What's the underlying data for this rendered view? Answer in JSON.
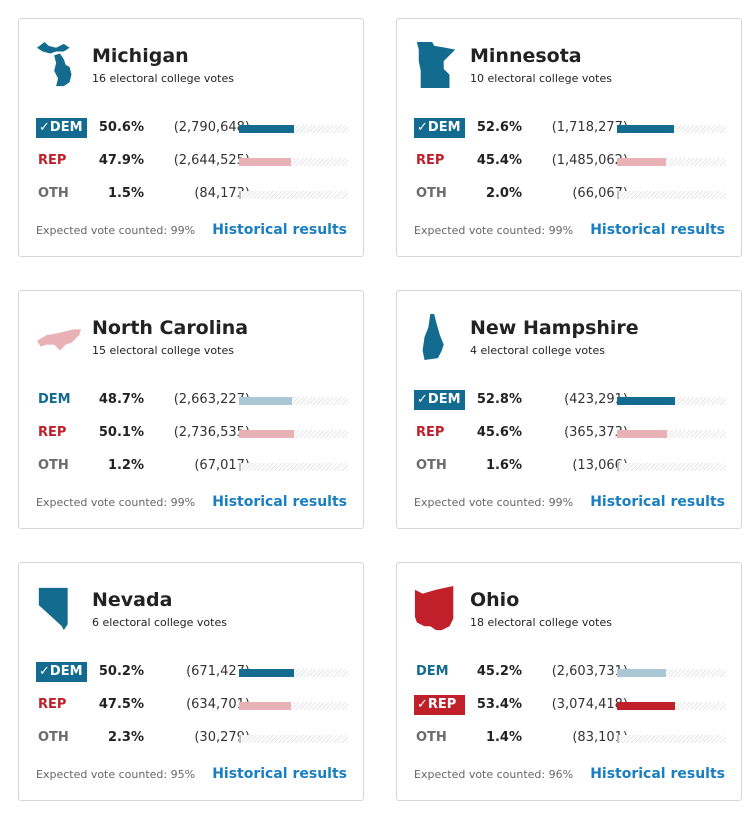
{
  "colors": {
    "dem": "#136b8f",
    "dem_light": "#a9c7d4",
    "rep": "#c0202a",
    "rep_light": "#e8b1b5",
    "oth": "#6b6b6b",
    "oth_bar": "#bbbbbb"
  },
  "cards": [
    {
      "state": "Michigan",
      "votes": "16 electoral college votes",
      "winner": "dem",
      "expected": "Expected vote counted: 99%",
      "link": "Historical results",
      "rows": [
        {
          "party": "DEM",
          "pct": "50.6%",
          "count": "(2,790,648)",
          "value": 50.6
        },
        {
          "party": "REP",
          "pct": "47.9%",
          "count": "(2,644,525)",
          "value": 47.9
        },
        {
          "party": "OTH",
          "pct": "1.5%",
          "count": "(84,173)",
          "value": 1.5
        }
      ]
    },
    {
      "state": "Minnesota",
      "votes": "10 electoral college votes",
      "winner": "dem",
      "expected": "Expected vote counted: 99%",
      "link": "Historical results",
      "rows": [
        {
          "party": "DEM",
          "pct": "52.6%",
          "count": "(1,718,277)",
          "value": 52.6
        },
        {
          "party": "REP",
          "pct": "45.4%",
          "count": "(1,485,062)",
          "value": 45.4
        },
        {
          "party": "OTH",
          "pct": "2.0%",
          "count": "(66,067)",
          "value": 2.0
        }
      ]
    },
    {
      "state": "North Carolina",
      "votes": "15 electoral college votes",
      "winner": "none",
      "expected": "Expected vote counted: 99%",
      "link": "Historical results",
      "rows": [
        {
          "party": "DEM",
          "pct": "48.7%",
          "count": "(2,663,227)",
          "value": 48.7
        },
        {
          "party": "REP",
          "pct": "50.1%",
          "count": "(2,736,535)",
          "value": 50.1
        },
        {
          "party": "OTH",
          "pct": "1.2%",
          "count": "(67,017)",
          "value": 1.2
        }
      ]
    },
    {
      "state": "New Hampshire",
      "votes": "4 electoral college votes",
      "winner": "dem",
      "expected": "Expected vote counted: 99%",
      "link": "Historical results",
      "rows": [
        {
          "party": "DEM",
          "pct": "52.8%",
          "count": "(423,291)",
          "value": 52.8
        },
        {
          "party": "REP",
          "pct": "45.6%",
          "count": "(365,373)",
          "value": 45.6
        },
        {
          "party": "OTH",
          "pct": "1.6%",
          "count": "(13,066)",
          "value": 1.6
        }
      ]
    },
    {
      "state": "Nevada",
      "votes": "6 electoral college votes",
      "winner": "dem",
      "expected": "Expected vote counted: 95%",
      "link": "Historical results",
      "rows": [
        {
          "party": "DEM",
          "pct": "50.2%",
          "count": "(671,427)",
          "value": 50.2
        },
        {
          "party": "REP",
          "pct": "47.5%",
          "count": "(634,701)",
          "value": 47.5
        },
        {
          "party": "OTH",
          "pct": "2.3%",
          "count": "(30,279)",
          "value": 2.3
        }
      ]
    },
    {
      "state": "Ohio",
      "votes": "18 electoral college votes",
      "winner": "rep",
      "expected": "Expected vote counted: 96%",
      "link": "Historical results",
      "rows": [
        {
          "party": "DEM",
          "pct": "45.2%",
          "count": "(2,603,731)",
          "value": 45.2
        },
        {
          "party": "REP",
          "pct": "53.4%",
          "count": "(3,074,418)",
          "value": 53.4
        },
        {
          "party": "OTH",
          "pct": "1.4%",
          "count": "(83,101)",
          "value": 1.4
        }
      ]
    }
  ]
}
